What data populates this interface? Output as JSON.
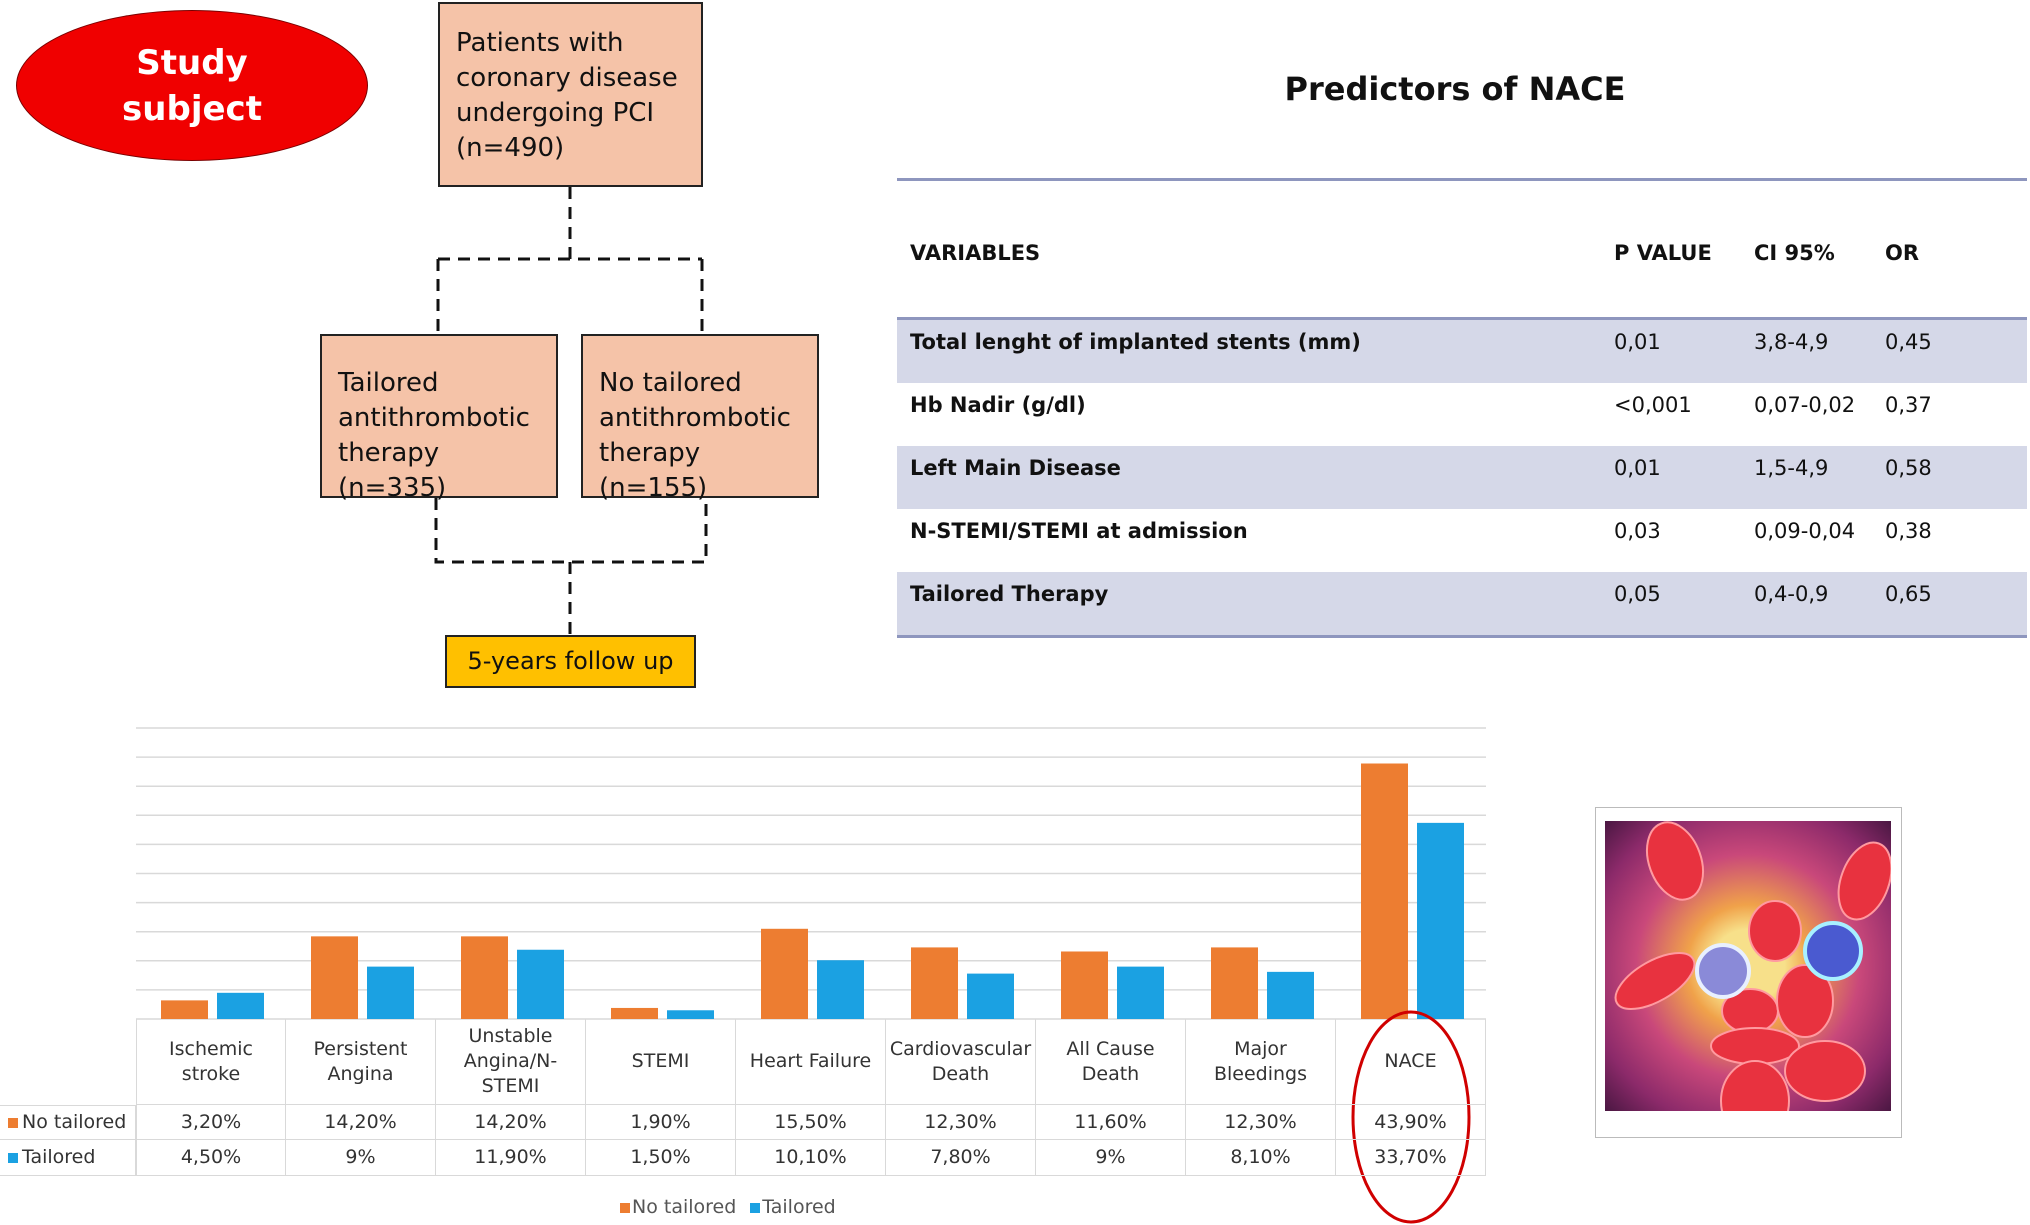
{
  "flowchart": {
    "study_subject": "Study\nsubject",
    "patients": "Patients with coronary disease undergoing PCI (n=490)",
    "tailored": "Tailored antithrombotic therapy (n=335)",
    "no_tailored": "No tailored antithrombotic therapy (n=155)",
    "follow_up": "5-years follow up",
    "colors": {
      "ellipse": "#f00000",
      "box": "#f5c3a8",
      "follow_up": "#ffc000"
    }
  },
  "predictors": {
    "title": "Predictors of NACE",
    "headers": [
      "VARIABLES",
      "P VALUE",
      "CI 95%",
      "OR"
    ],
    "rows": [
      [
        "Total lenght of implanted stents (mm)",
        "0,01",
        "3,8-4,9",
        "0,45"
      ],
      [
        "Hb Nadir (g/dl)",
        "<0,001",
        "0,07-0,02",
        "0,37"
      ],
      [
        "Left Main Disease",
        "0,01",
        "1,5-4,9",
        "0,58"
      ],
      [
        "N-STEMI/STEMI at admission",
        "0,03",
        "0,09-0,04",
        "0,38"
      ],
      [
        "Tailored Therapy",
        "0,05",
        "0,4-0,9",
        "0,65"
      ]
    ]
  },
  "chart_data": {
    "type": "bar",
    "categories": [
      "Ischemic stroke",
      "Persistent Angina",
      "Unstable Angina/N-STEMI",
      "STEMI",
      "Heart Failure",
      "Cardiovascular Death",
      "All Cause Death",
      "Major Bleedings",
      "NACE"
    ],
    "series": [
      {
        "name": "No tailored",
        "color": "#ed7d31",
        "values": [
          3.2,
          14.2,
          14.2,
          1.9,
          15.5,
          12.3,
          11.6,
          12.3,
          43.9
        ],
        "labels": [
          "3,20%",
          "14,20%",
          "14,20%",
          "1,90%",
          "15,50%",
          "12,30%",
          "11,60%",
          "12,30%",
          "43,90%"
        ]
      },
      {
        "name": "Tailored",
        "color": "#1ba1e2",
        "values": [
          4.5,
          9,
          11.9,
          1.5,
          10.1,
          7.8,
          9,
          8.1,
          33.7
        ],
        "labels": [
          "4,50%",
          "9%",
          "11,90%",
          "1,50%",
          "10,10%",
          "7,80%",
          "9%",
          "8,10%",
          "33,70%"
        ]
      }
    ],
    "ylim": [
      0,
      50
    ],
    "grid": true,
    "legend": "bottom",
    "highlight": "NACE",
    "highlight_color": "#d00000"
  }
}
